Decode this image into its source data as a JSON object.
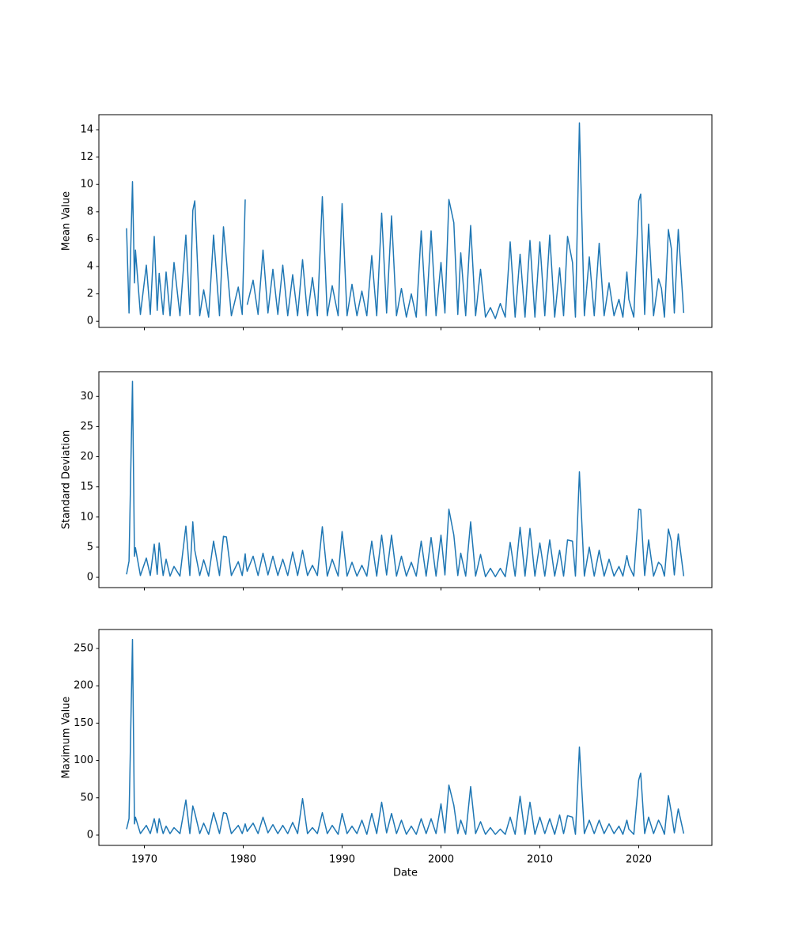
{
  "chart_data": [
    {
      "type": "line",
      "ylabel": "Mean Value",
      "xlim": [
        1965.4,
        2027.4
      ],
      "xticks": [
        1970,
        1980,
        1990,
        2000,
        2010,
        2020
      ],
      "ylim": [
        -0.45,
        15.1
      ],
      "yticks": [
        0,
        2,
        4,
        6,
        8,
        10,
        12,
        14
      ],
      "x": [
        1968.2,
        1968.45,
        1968.8,
        1969.0,
        1969.1,
        1969.6,
        1970.2,
        1970.6,
        1971.0,
        1971.3,
        1971.5,
        1971.9,
        1972.2,
        1972.6,
        1973.0,
        1973.6,
        1974.2,
        1974.6,
        1974.9,
        1975.1,
        1975.6,
        1976.0,
        1976.5,
        1977.0,
        1977.6,
        1978.0,
        1978.3,
        1978.8,
        1979.5,
        1979.9,
        1980.2,
        1980.3,
        1980.4,
        1981.0,
        1981.5,
        1982.0,
        1982.5,
        1983.0,
        1983.5,
        1984.0,
        1984.5,
        1985.0,
        1985.5,
        1986.0,
        1986.5,
        1987.0,
        1987.5,
        1988.0,
        1988.5,
        1989.0,
        1989.6,
        1990.0,
        1990.5,
        1991.0,
        1991.5,
        1992.0,
        1992.5,
        1993.0,
        1993.5,
        1994.0,
        1994.5,
        1995.0,
        1995.5,
        1996.0,
        1996.5,
        1997.0,
        1997.5,
        1998.0,
        1998.5,
        1999.0,
        1999.5,
        2000.0,
        2000.4,
        2000.8,
        2001.3,
        2001.7,
        2002.0,
        2002.5,
        2003.0,
        2003.5,
        2004.0,
        2004.5,
        2005.0,
        2005.5,
        2006.0,
        2006.5,
        2007.0,
        2007.5,
        2008.0,
        2008.5,
        2009.0,
        2009.5,
        2010.0,
        2010.5,
        2011.0,
        2011.5,
        2012.0,
        2012.4,
        2012.8,
        2013.3,
        2013.6,
        2014.0,
        2014.5,
        2015.0,
        2015.5,
        2016.0,
        2016.5,
        2017.0,
        2017.5,
        2018.0,
        2018.4,
        2018.8,
        2019.0,
        2019.5,
        2020.0,
        2020.2,
        2020.6,
        2021.0,
        2021.5,
        2022.0,
        2022.3,
        2022.6,
        2023.0,
        2023.3,
        2023.6,
        2024.0,
        2024.55
      ],
      "series": [
        {
          "color": "#1f77b4",
          "values": [
            6.8,
            0.6,
            10.2,
            2.8,
            5.2,
            0.5,
            4.1,
            0.5,
            6.2,
            0.8,
            3.5,
            0.5,
            3.6,
            0.4,
            4.3,
            0.4,
            6.3,
            0.5,
            8.1,
            8.8,
            0.4,
            2.3,
            0.3,
            6.3,
            0.4,
            6.9,
            4.5,
            0.4,
            2.5,
            0.5,
            8.9,
            null,
            1.2,
            3.0,
            0.5,
            5.2,
            0.6,
            3.8,
            0.5,
            4.1,
            0.4,
            3.4,
            0.4,
            4.5,
            0.4,
            3.2,
            0.4,
            9.1,
            0.4,
            2.6,
            0.4,
            8.6,
            0.4,
            2.7,
            0.4,
            2.2,
            0.4,
            4.8,
            0.4,
            7.9,
            0.6,
            7.7,
            0.4,
            2.4,
            0.3,
            2.0,
            0.3,
            6.6,
            0.4,
            6.6,
            0.4,
            4.3,
            0.6,
            8.9,
            7.2,
            0.5,
            5.0,
            0.4,
            7.0,
            0.4,
            3.8,
            0.3,
            1.0,
            0.2,
            1.3,
            0.3,
            5.8,
            0.3,
            4.9,
            0.3,
            5.9,
            0.3,
            5.8,
            0.4,
            6.3,
            0.3,
            3.9,
            0.4,
            6.2,
            4.3,
            0.3,
            14.5,
            0.4,
            4.7,
            0.4,
            5.7,
            0.4,
            2.8,
            0.4,
            1.6,
            0.3,
            3.6,
            1.6,
            0.3,
            8.8,
            9.3,
            0.5,
            7.1,
            0.4,
            3.1,
            2.4,
            0.3,
            6.7,
            5.3,
            0.6,
            6.7,
            0.6
          ]
        }
      ]
    },
    {
      "type": "line",
      "ylabel": "Standard Deviation",
      "xlim": [
        1965.4,
        2027.4
      ],
      "xticks": [
        1970,
        1980,
        1990,
        2000,
        2010,
        2020
      ],
      "ylim": [
        -1.7,
        34.1
      ],
      "yticks": [
        0,
        5,
        10,
        15,
        20,
        25,
        30
      ],
      "x": [
        1968.2,
        1968.45,
        1968.8,
        1969.0,
        1969.1,
        1969.6,
        1970.2,
        1970.6,
        1971.0,
        1971.3,
        1971.5,
        1971.9,
        1972.2,
        1972.6,
        1973.0,
        1973.6,
        1974.2,
        1974.6,
        1974.9,
        1975.1,
        1975.6,
        1976.0,
        1976.5,
        1977.0,
        1977.6,
        1978.0,
        1978.3,
        1978.8,
        1979.5,
        1979.9,
        1980.2,
        1980.3,
        1980.4,
        1981.0,
        1981.5,
        1982.0,
        1982.5,
        1983.0,
        1983.5,
        1984.0,
        1984.5,
        1985.0,
        1985.5,
        1986.0,
        1986.5,
        1987.0,
        1987.5,
        1988.0,
        1988.5,
        1989.0,
        1989.6,
        1990.0,
        1990.5,
        1991.0,
        1991.5,
        1992.0,
        1992.5,
        1993.0,
        1993.5,
        1994.0,
        1994.5,
        1995.0,
        1995.5,
        1996.0,
        1996.5,
        1997.0,
        1997.5,
        1998.0,
        1998.5,
        1999.0,
        1999.5,
        2000.0,
        2000.4,
        2000.8,
        2001.3,
        2001.7,
        2002.0,
        2002.5,
        2003.0,
        2003.5,
        2004.0,
        2004.5,
        2005.0,
        2005.5,
        2006.0,
        2006.5,
        2007.0,
        2007.5,
        2008.0,
        2008.5,
        2009.0,
        2009.5,
        2010.0,
        2010.5,
        2011.0,
        2011.5,
        2012.0,
        2012.4,
        2012.8,
        2013.3,
        2013.6,
        2014.0,
        2014.5,
        2015.0,
        2015.5,
        2016.0,
        2016.5,
        2017.0,
        2017.5,
        2018.0,
        2018.4,
        2018.8,
        2019.0,
        2019.5,
        2020.0,
        2020.2,
        2020.6,
        2021.0,
        2021.5,
        2022.0,
        2022.3,
        2022.6,
        2023.0,
        2023.3,
        2023.6,
        2024.0,
        2024.55
      ],
      "series": [
        {
          "color": "#1f77b4",
          "values": [
            0.5,
            2.7,
            32.5,
            3.5,
            4.9,
            0.3,
            3.2,
            0.3,
            5.5,
            0.5,
            5.7,
            0.3,
            3.0,
            0.2,
            1.8,
            0.2,
            8.5,
            0.3,
            9.2,
            4.5,
            0.3,
            2.9,
            0.2,
            6.0,
            0.3,
            6.8,
            6.7,
            0.3,
            2.6,
            0.3,
            3.9,
            2.0,
            1.0,
            3.5,
            0.3,
            4.0,
            0.4,
            3.5,
            0.3,
            3.0,
            0.3,
            4.2,
            0.3,
            4.5,
            0.3,
            2.0,
            0.3,
            8.4,
            0.2,
            3.0,
            0.2,
            7.6,
            0.2,
            2.5,
            0.2,
            2.0,
            0.2,
            6.0,
            0.2,
            7.0,
            0.4,
            7.0,
            0.2,
            3.5,
            0.2,
            2.5,
            0.2,
            6.0,
            0.2,
            6.6,
            0.2,
            7.0,
            0.4,
            11.3,
            7.0,
            0.3,
            4.0,
            0.2,
            9.2,
            0.2,
            3.8,
            0.1,
            1.5,
            0.1,
            1.5,
            0.1,
            5.8,
            0.2,
            8.3,
            0.2,
            8.1,
            0.2,
            5.7,
            0.2,
            6.2,
            0.2,
            4.5,
            0.2,
            6.2,
            6.0,
            0.2,
            17.5,
            0.2,
            5.0,
            0.2,
            4.5,
            0.2,
            3.0,
            0.2,
            1.8,
            0.2,
            3.6,
            2.0,
            0.2,
            11.3,
            11.2,
            0.3,
            6.2,
            0.2,
            2.5,
            2.0,
            0.2,
            8.0,
            6.0,
            0.4,
            7.2,
            0.2
          ]
        }
      ]
    },
    {
      "type": "line",
      "ylabel": "Maximum Value",
      "xlabel": "Date",
      "xlim": [
        1965.4,
        2027.4
      ],
      "xticks": [
        1970,
        1980,
        1990,
        2000,
        2010,
        2020
      ],
      "ylim": [
        -13.8,
        275.4
      ],
      "yticks": [
        0,
        50,
        100,
        150,
        200,
        250
      ],
      "x": [
        1968.2,
        1968.45,
        1968.8,
        1969.0,
        1969.1,
        1969.6,
        1970.2,
        1970.6,
        1971.0,
        1971.3,
        1971.5,
        1971.9,
        1972.2,
        1972.6,
        1973.0,
        1973.6,
        1974.2,
        1974.6,
        1974.9,
        1975.1,
        1975.6,
        1976.0,
        1976.5,
        1977.0,
        1977.6,
        1978.0,
        1978.3,
        1978.8,
        1979.5,
        1979.9,
        1980.2,
        1980.3,
        1980.4,
        1981.0,
        1981.5,
        1982.0,
        1982.5,
        1983.0,
        1983.5,
        1984.0,
        1984.5,
        1985.0,
        1985.5,
        1986.0,
        1986.5,
        1987.0,
        1987.5,
        1988.0,
        1988.5,
        1989.0,
        1989.6,
        1990.0,
        1990.5,
        1991.0,
        1991.5,
        1992.0,
        1992.5,
        1993.0,
        1993.5,
        1994.0,
        1994.5,
        1995.0,
        1995.5,
        1996.0,
        1996.5,
        1997.0,
        1997.5,
        1998.0,
        1998.5,
        1999.0,
        1999.5,
        2000.0,
        2000.4,
        2000.8,
        2001.3,
        2001.7,
        2002.0,
        2002.5,
        2003.0,
        2003.5,
        2004.0,
        2004.5,
        2005.0,
        2005.5,
        2006.0,
        2006.5,
        2007.0,
        2007.5,
        2008.0,
        2008.5,
        2009.0,
        2009.5,
        2010.0,
        2010.5,
        2011.0,
        2011.5,
        2012.0,
        2012.4,
        2012.8,
        2013.3,
        2013.6,
        2014.0,
        2014.5,
        2015.0,
        2015.5,
        2016.0,
        2016.5,
        2017.0,
        2017.5,
        2018.0,
        2018.4,
        2018.8,
        2019.0,
        2019.5,
        2020.0,
        2020.2,
        2020.6,
        2021.0,
        2021.5,
        2022.0,
        2022.3,
        2022.6,
        2023.0,
        2023.3,
        2023.6,
        2024.0,
        2024.55
      ],
      "series": [
        {
          "color": "#1f77b4",
          "values": [
            8,
            22,
            262,
            15,
            24,
            2,
            13,
            2,
            22,
            3,
            22,
            2,
            12,
            2,
            10,
            2,
            47,
            2,
            39,
            30,
            2,
            16,
            1,
            30,
            2,
            30,
            29,
            2,
            13,
            2,
            15,
            10,
            5,
            16,
            2,
            24,
            3,
            14,
            2,
            13,
            2,
            17,
            2,
            49,
            2,
            10,
            2,
            30,
            2,
            13,
            1,
            29,
            2,
            12,
            2,
            20,
            1,
            29,
            2,
            44,
            3,
            29,
            2,
            20,
            1,
            12,
            1,
            22,
            2,
            22,
            2,
            42,
            3,
            67,
            40,
            2,
            20,
            1,
            65,
            2,
            18,
            1,
            10,
            1,
            8,
            1,
            24,
            1,
            52,
            1,
            44,
            1,
            24,
            2,
            22,
            1,
            27,
            2,
            26,
            24,
            1,
            118,
            2,
            20,
            2,
            20,
            2,
            15,
            2,
            12,
            1,
            20,
            8,
            1,
            74,
            83,
            2,
            24,
            2,
            20,
            12,
            1,
            53,
            30,
            3,
            35,
            2
          ]
        }
      ]
    }
  ]
}
